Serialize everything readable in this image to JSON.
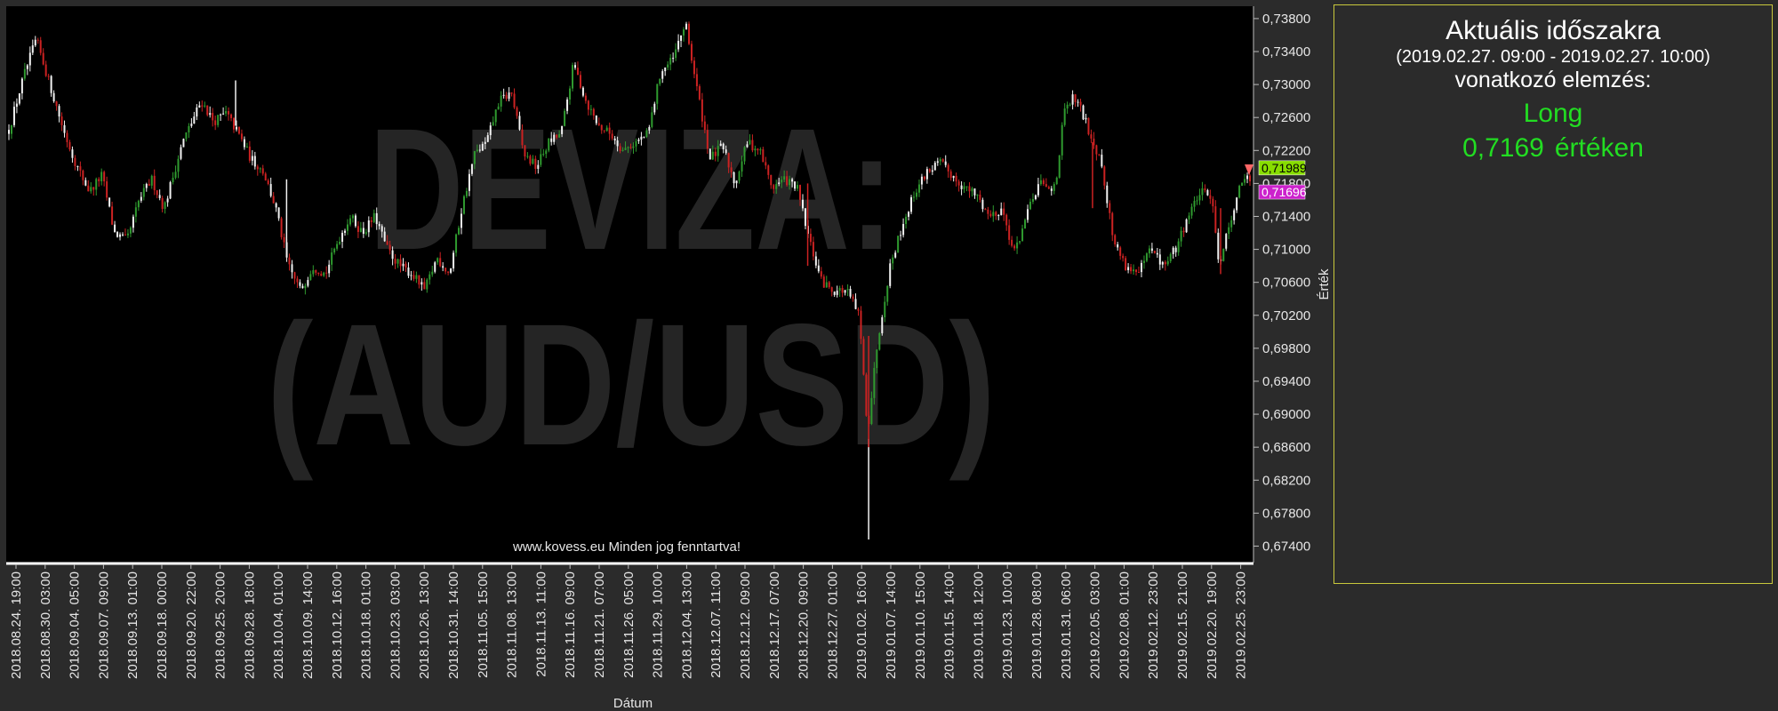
{
  "chart_data": {
    "type": "candlestick",
    "watermark": [
      "DEVIZA:",
      "(AUD/USD)"
    ],
    "footer_text": "www.kovess.eu Minden jog fenntartva!",
    "xlabel": "Dátum",
    "ylabel": "Érték",
    "ylim": [
      0.672,
      0.7395
    ],
    "y_ticks": [
      "0,73800",
      "0,73400",
      "0,73000",
      "0,72600",
      "0,72200",
      "0,71800",
      "0,71400",
      "0,71000",
      "0,70600",
      "0,70200",
      "0,69800",
      "0,69400",
      "0,69000",
      "0,68600",
      "0,68200",
      "0,67800",
      "0,67400"
    ],
    "y_tick_values": [
      0.738,
      0.734,
      0.73,
      0.726,
      0.722,
      0.718,
      0.714,
      0.71,
      0.706,
      0.702,
      0.698,
      0.694,
      0.69,
      0.686,
      0.682,
      0.678,
      0.674
    ],
    "x_ticks": [
      "2018.08.24. 19:00",
      "2018.08.30. 03:00",
      "2018.09.04. 05:00",
      "2018.09.07. 09:00",
      "2018.09.13. 01:00",
      "2018.09.18. 00:00",
      "2018.09.20. 22:00",
      "2018.09.25. 20:00",
      "2018.09.28. 18:00",
      "2018.10.04. 01:00",
      "2018.10.09. 14:00",
      "2018.10.12. 16:00",
      "2018.10.18. 01:00",
      "2018.10.23. 03:00",
      "2018.10.26. 13:00",
      "2018.10.31. 14:00",
      "2018.11.05. 15:00",
      "2018.11.08. 13:00",
      "2018.11.13. 11:00",
      "2018.11.16. 09:00",
      "2018.11.21. 07:00",
      "2018.11.26. 05:00",
      "2018.11.29. 10:00",
      "2018.12.04. 13:00",
      "2018.12.07. 11:00",
      "2018.12.12. 09:00",
      "2018.12.17. 07:00",
      "2018.12.20. 09:00",
      "2018.12.27. 01:00",
      "2019.01.02. 16:00",
      "2019.01.07. 14:00",
      "2019.01.10. 15:00",
      "2019.01.15. 14:00",
      "2019.01.18. 12:00",
      "2019.01.23. 10:00",
      "2019.01.28. 08:00",
      "2019.01.31. 06:00",
      "2019.02.05. 03:00",
      "2019.02.08. 01:00",
      "2019.02.12. 23:00",
      "2019.02.15. 21:00",
      "2019.02.20. 19:00",
      "2019.02.25. 23:00"
    ],
    "price_path": [
      [
        0,
        0.7245
      ],
      [
        0.012,
        0.731
      ],
      [
        0.022,
        0.7355
      ],
      [
        0.035,
        0.729
      ],
      [
        0.045,
        0.724
      ],
      [
        0.055,
        0.72
      ],
      [
        0.065,
        0.717
      ],
      [
        0.075,
        0.719
      ],
      [
        0.085,
        0.712
      ],
      [
        0.095,
        0.711
      ],
      [
        0.105,
        0.716
      ],
      [
        0.115,
        0.7185
      ],
      [
        0.125,
        0.715
      ],
      [
        0.14,
        0.723
      ],
      [
        0.155,
        0.728
      ],
      [
        0.165,
        0.7255
      ],
      [
        0.175,
        0.7265
      ],
      [
        0.185,
        0.724
      ],
      [
        0.195,
        0.721
      ],
      [
        0.205,
        0.7195
      ],
      [
        0.215,
        0.715
      ],
      [
        0.225,
        0.708
      ],
      [
        0.235,
        0.705
      ],
      [
        0.245,
        0.708
      ],
      [
        0.255,
        0.707
      ],
      [
        0.265,
        0.711
      ],
      [
        0.275,
        0.714
      ],
      [
        0.285,
        0.712
      ],
      [
        0.295,
        0.714
      ],
      [
        0.305,
        0.71
      ],
      [
        0.315,
        0.708
      ],
      [
        0.325,
        0.707
      ],
      [
        0.335,
        0.705
      ],
      [
        0.345,
        0.709
      ],
      [
        0.355,
        0.707
      ],
      [
        0.365,
        0.715
      ],
      [
        0.375,
        0.7215
      ],
      [
        0.385,
        0.723
      ],
      [
        0.395,
        0.728
      ],
      [
        0.405,
        0.729
      ],
      [
        0.415,
        0.7215
      ],
      [
        0.425,
        0.72
      ],
      [
        0.435,
        0.723
      ],
      [
        0.445,
        0.724
      ],
      [
        0.455,
        0.7325
      ],
      [
        0.465,
        0.728
      ],
      [
        0.475,
        0.725
      ],
      [
        0.485,
        0.724
      ],
      [
        0.495,
        0.722
      ],
      [
        0.505,
        0.723
      ],
      [
        0.515,
        0.724
      ],
      [
        0.525,
        0.7315
      ],
      [
        0.535,
        0.733
      ],
      [
        0.545,
        0.7375
      ],
      [
        0.555,
        0.729
      ],
      [
        0.565,
        0.721
      ],
      [
        0.575,
        0.7225
      ],
      [
        0.585,
        0.718
      ],
      [
        0.595,
        0.723
      ],
      [
        0.605,
        0.722
      ],
      [
        0.615,
        0.7175
      ],
      [
        0.625,
        0.7185
      ],
      [
        0.635,
        0.7175
      ],
      [
        0.645,
        0.711
      ],
      [
        0.655,
        0.706
      ],
      [
        0.665,
        0.705
      ],
      [
        0.675,
        0.705
      ],
      [
        0.685,
        0.702
      ],
      [
        0.692,
        0.688
      ],
      [
        0.7,
        0.699
      ],
      [
        0.71,
        0.708
      ],
      [
        0.72,
        0.713
      ],
      [
        0.73,
        0.717
      ],
      [
        0.74,
        0.7195
      ],
      [
        0.75,
        0.7205
      ],
      [
        0.76,
        0.719
      ],
      [
        0.77,
        0.7175
      ],
      [
        0.78,
        0.7165
      ],
      [
        0.79,
        0.714
      ],
      [
        0.8,
        0.715
      ],
      [
        0.81,
        0.7095
      ],
      [
        0.82,
        0.714
      ],
      [
        0.83,
        0.718
      ],
      [
        0.84,
        0.717
      ],
      [
        0.845,
        0.7195
      ],
      [
        0.85,
        0.7265
      ],
      [
        0.858,
        0.7285
      ],
      [
        0.865,
        0.7265
      ],
      [
        0.875,
        0.7225
      ],
      [
        0.88,
        0.721
      ],
      [
        0.89,
        0.711
      ],
      [
        0.9,
        0.708
      ],
      [
        0.91,
        0.707
      ],
      [
        0.92,
        0.71
      ],
      [
        0.93,
        0.708
      ],
      [
        0.94,
        0.71
      ],
      [
        0.95,
        0.714
      ],
      [
        0.96,
        0.717
      ],
      [
        0.97,
        0.716
      ],
      [
        0.975,
        0.708
      ],
      [
        0.985,
        0.714
      ],
      [
        0.995,
        0.719
      ],
      [
        1,
        0.718
      ]
    ],
    "markers": [
      {
        "label": "0,71989",
        "value": 0.71989,
        "bg": "#88dd00",
        "fg": "#000000"
      },
      {
        "label": "0,71696",
        "value": 0.71696,
        "bg": "#cc22cc",
        "fg": "#ffffff"
      }
    ],
    "colors": {
      "up": "#2f9a2f",
      "down": "#cc2222",
      "neutral": "#f2f2f2",
      "plot_bg": "#000000",
      "watermark": "#252525"
    }
  },
  "panel": {
    "title": "Aktuális időszakra",
    "range": "(2019.02.27. 09:00 - 2019.02.27. 10:00)",
    "ref": "vonatkozó elemzés:",
    "direction": "Long",
    "value": "0,7169",
    "value_suffix": "értéken"
  }
}
